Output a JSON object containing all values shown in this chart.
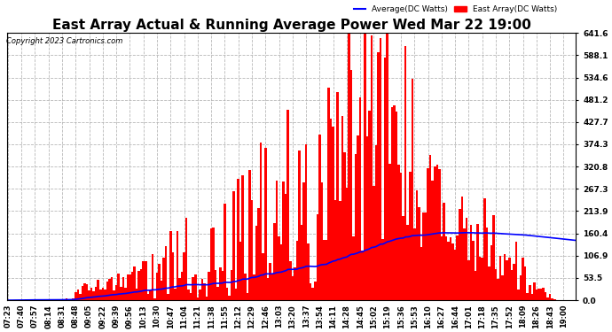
{
  "title": "East Array Actual & Running Average Power Wed Mar 22 19:00",
  "copyright": "Copyright 2023 Cartronics.com",
  "legend_avg": "Average(DC Watts)",
  "legend_east": "East Array(DC Watts)",
  "yticks": [
    0.0,
    53.5,
    106.9,
    160.4,
    213.9,
    267.3,
    320.8,
    374.3,
    427.7,
    481.2,
    534.6,
    588.1,
    641.6
  ],
  "ymax": 641.6,
  "ymin": 0.0,
  "bg_color": "#ffffff",
  "plot_bg": "#ffffff",
  "grid_color": "#b0b0b0",
  "bar_color": "#ff0000",
  "avg_color": "#0000ff",
  "title_fontsize": 11,
  "tick_fontsize": 6.5,
  "x_tick_labels": [
    "07:23",
    "07:40",
    "07:57",
    "08:14",
    "08:31",
    "08:48",
    "09:05",
    "09:22",
    "09:39",
    "09:56",
    "10:13",
    "10:30",
    "10:47",
    "11:04",
    "11:21",
    "11:38",
    "11:55",
    "12:12",
    "12:29",
    "12:46",
    "13:03",
    "13:20",
    "13:37",
    "13:54",
    "14:11",
    "14:28",
    "14:45",
    "15:02",
    "15:19",
    "15:36",
    "15:53",
    "16:10",
    "16:27",
    "16:44",
    "17:01",
    "17:18",
    "17:35",
    "17:52",
    "18:09",
    "18:26",
    "18:43",
    "19:00"
  ]
}
